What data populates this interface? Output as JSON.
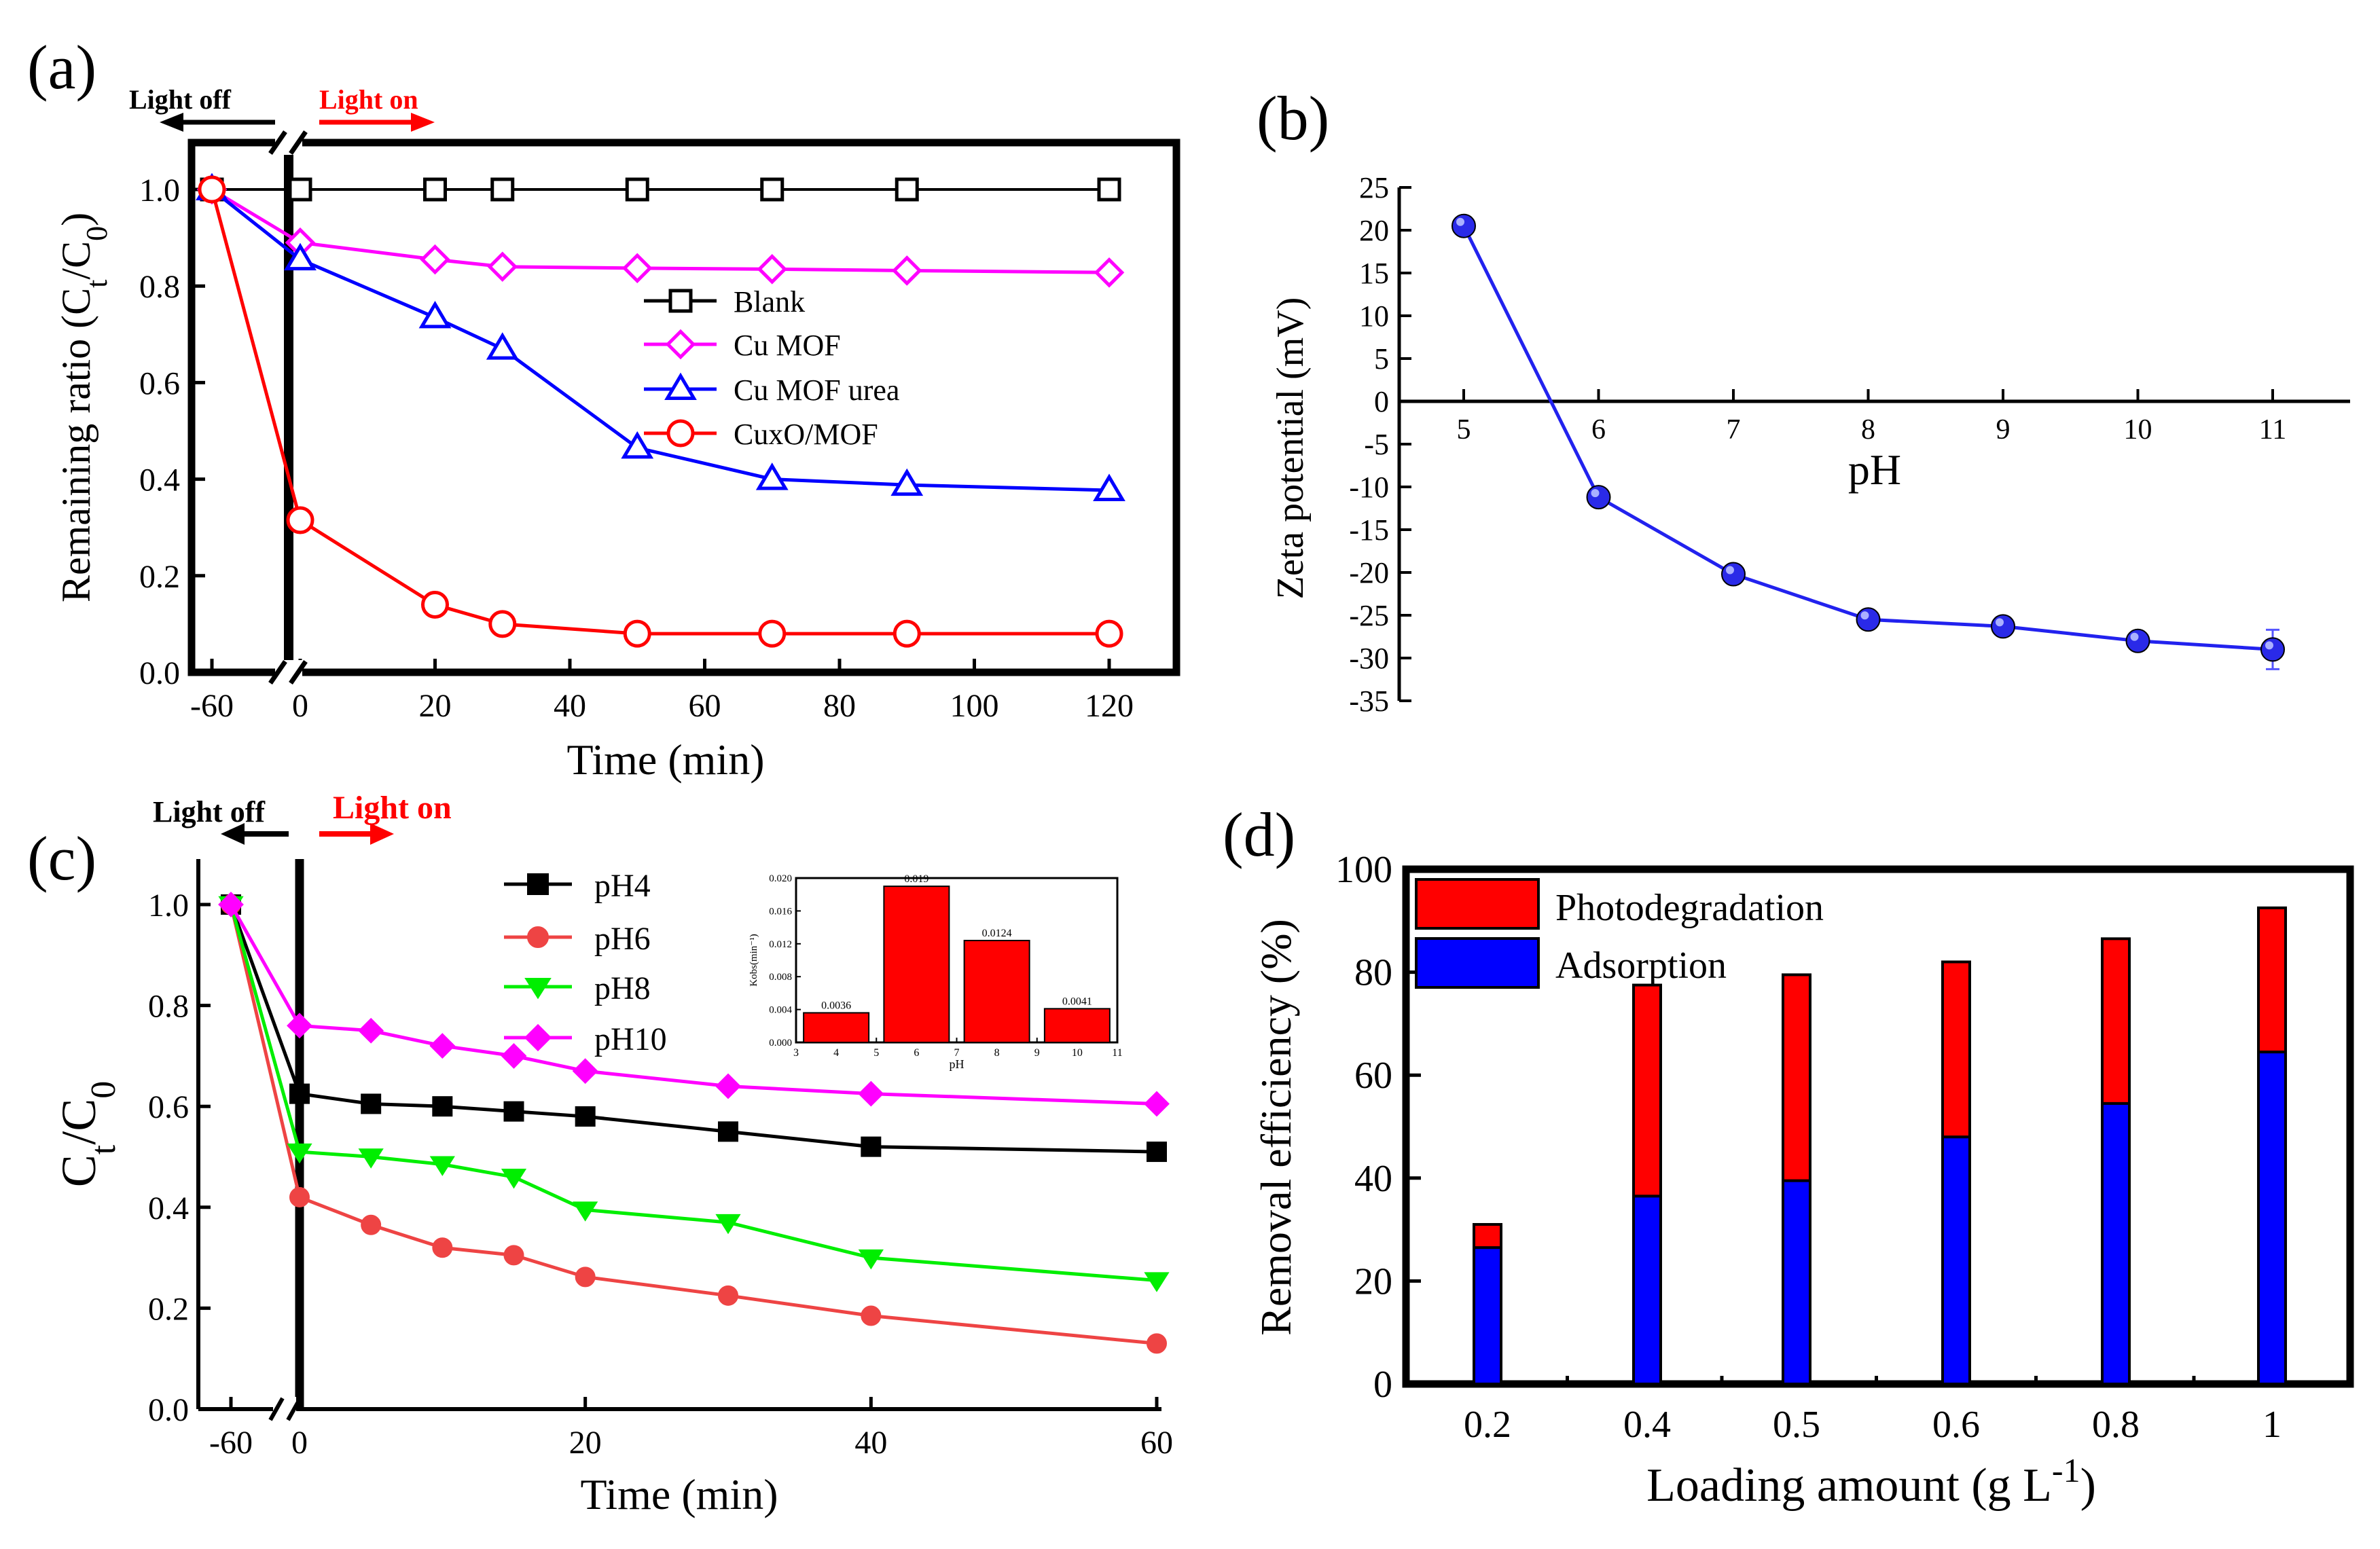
{
  "colors": {
    "black": "#000000",
    "magenta": "#ff00ff",
    "blue": "#0000ff",
    "red": "#ff0000",
    "salmon": "#ee4444",
    "green": "#00ee00",
    "zeta": "#2222ee"
  },
  "chart_data": [
    {
      "panel": "(a)",
      "type": "line",
      "light_off": "Light off",
      "light_on": "Light on",
      "xlabel": "Time (min)",
      "ylabel_parts": [
        "Remaining ratio (C",
        "t",
        "/C",
        "0",
        ")"
      ],
      "xticks": [
        "-60",
        "0",
        "20",
        "40",
        "60",
        "80",
        "100",
        "120"
      ],
      "yticks": [
        "0.0",
        "0.2",
        "0.4",
        "0.6",
        "0.8",
        "1.0"
      ],
      "ylim": [
        0,
        1.1
      ],
      "x": [
        -60,
        0,
        20,
        30,
        50,
        70,
        90,
        120
      ],
      "series": [
        {
          "name": "Blank",
          "marker": "square",
          "color": "#000000",
          "values": [
            1.0,
            1.0,
            1.0,
            1.0,
            1.0,
            1.0,
            1.0,
            1.0
          ]
        },
        {
          "name": "Cu MOF",
          "marker": "diamond",
          "color": "#ff00ff",
          "values": [
            1.0,
            0.89,
            0.855,
            0.84,
            0.837,
            0.835,
            0.832,
            0.828
          ]
        },
        {
          "name": "Cu MOF urea",
          "marker": "triangle",
          "color": "#0000ff",
          "values": [
            1.0,
            0.855,
            0.735,
            0.67,
            0.465,
            0.4,
            0.388,
            0.377
          ]
        },
        {
          "name": "CuxO/MOF",
          "marker": "circle",
          "color": "#ff0000",
          "values": [
            1.0,
            0.315,
            0.14,
            0.1,
            0.08,
            0.08,
            0.08,
            0.08
          ]
        }
      ]
    },
    {
      "panel": "(b)",
      "type": "line",
      "xlabel": "pH",
      "ylabel": "Zeta potential (mV)",
      "xticks": [
        "5",
        "6",
        "7",
        "8",
        "9",
        "10",
        "11"
      ],
      "yticks": [
        "25",
        "20",
        "15",
        "10",
        "5",
        "0",
        "-5",
        "-10",
        "-15",
        "-20",
        "-25",
        "-30",
        "-35"
      ],
      "ylim": [
        -35,
        25
      ],
      "x": [
        5,
        6,
        7,
        8,
        9,
        10,
        11
      ],
      "values": [
        20.5,
        -11.2,
        -20.2,
        -25.5,
        -26.3,
        -28.0,
        -29.0
      ],
      "errors": [
        1.0,
        0.5,
        0.5,
        0.5,
        0.5,
        0.6,
        2.3
      ]
    },
    {
      "panel": "(c)",
      "type": "line",
      "light_off": "Light off",
      "light_on": "Light on",
      "xlabel": "Time (min)",
      "ylabel_parts": [
        "C",
        "t",
        "/C",
        "0"
      ],
      "xticks": [
        "-60",
        "0",
        "20",
        "40",
        "60"
      ],
      "yticks": [
        "0.0",
        "0.2",
        "0.4",
        "0.6",
        "0.8",
        "1.0"
      ],
      "ylim": [
        0,
        1.1
      ],
      "x": [
        -60,
        0,
        5,
        10,
        15,
        20,
        30,
        40,
        60
      ],
      "series": [
        {
          "name": "pH4",
          "marker": "square",
          "color": "#000000",
          "values": [
            1.0,
            0.625,
            0.605,
            0.6,
            0.59,
            0.58,
            0.55,
            0.52,
            0.51
          ]
        },
        {
          "name": "pH6",
          "marker": "circle",
          "color": "#ee4444",
          "values": [
            1.0,
            0.42,
            0.365,
            0.32,
            0.305,
            0.262,
            0.225,
            0.185,
            0.13
          ]
        },
        {
          "name": "pH8",
          "marker": "triangle-down",
          "color": "#00ee00",
          "values": [
            1.0,
            0.51,
            0.5,
            0.485,
            0.46,
            0.395,
            0.37,
            0.3,
            0.255
          ]
        },
        {
          "name": "pH10",
          "marker": "diamond",
          "color": "#ff00ff",
          "values": [
            1.0,
            0.76,
            0.75,
            0.72,
            0.7,
            0.67,
            0.64,
            0.625,
            0.605
          ]
        }
      ],
      "inset": {
        "type": "bar",
        "xlabel": "pH",
        "ylabel": "Kobs(min⁻¹)",
        "xticks": [
          "3",
          "4",
          "5",
          "6",
          "7",
          "8",
          "9",
          "10",
          "11"
        ],
        "yticks": [
          "0.000",
          "0.004",
          "0.008",
          "0.012",
          "0.016",
          "0.020"
        ],
        "ylim": [
          0,
          0.02
        ],
        "categories": [
          4,
          6,
          8,
          10
        ],
        "values": [
          0.0036,
          0.019,
          0.0124,
          0.0041
        ],
        "labels": [
          "0.0036",
          "0.019",
          "0.0124",
          "0.0041"
        ]
      }
    },
    {
      "panel": "(d)",
      "type": "bar",
      "stacked": true,
      "xlabel_main": "Loading amount (g L",
      "xlabel_sup": "-1",
      "xlabel_end": ")",
      "ylabel": "Removal efficiency (%)",
      "categories": [
        "0.2",
        "0.4",
        "0.5",
        "0.6",
        "0.8",
        "1"
      ],
      "yticks": [
        "0",
        "20",
        "40",
        "60",
        "80",
        "100"
      ],
      "ylim": [
        0,
        100
      ],
      "series": [
        {
          "name": "Photodegradation",
          "color": "#ff0000",
          "values": [
            4.5,
            41.0,
            40.0,
            34.0,
            32.0,
            28.0
          ]
        },
        {
          "name": "Adsorption",
          "color": "#0000ff",
          "values": [
            26.5,
            36.5,
            39.5,
            48.0,
            54.5,
            64.5
          ]
        }
      ]
    }
  ]
}
